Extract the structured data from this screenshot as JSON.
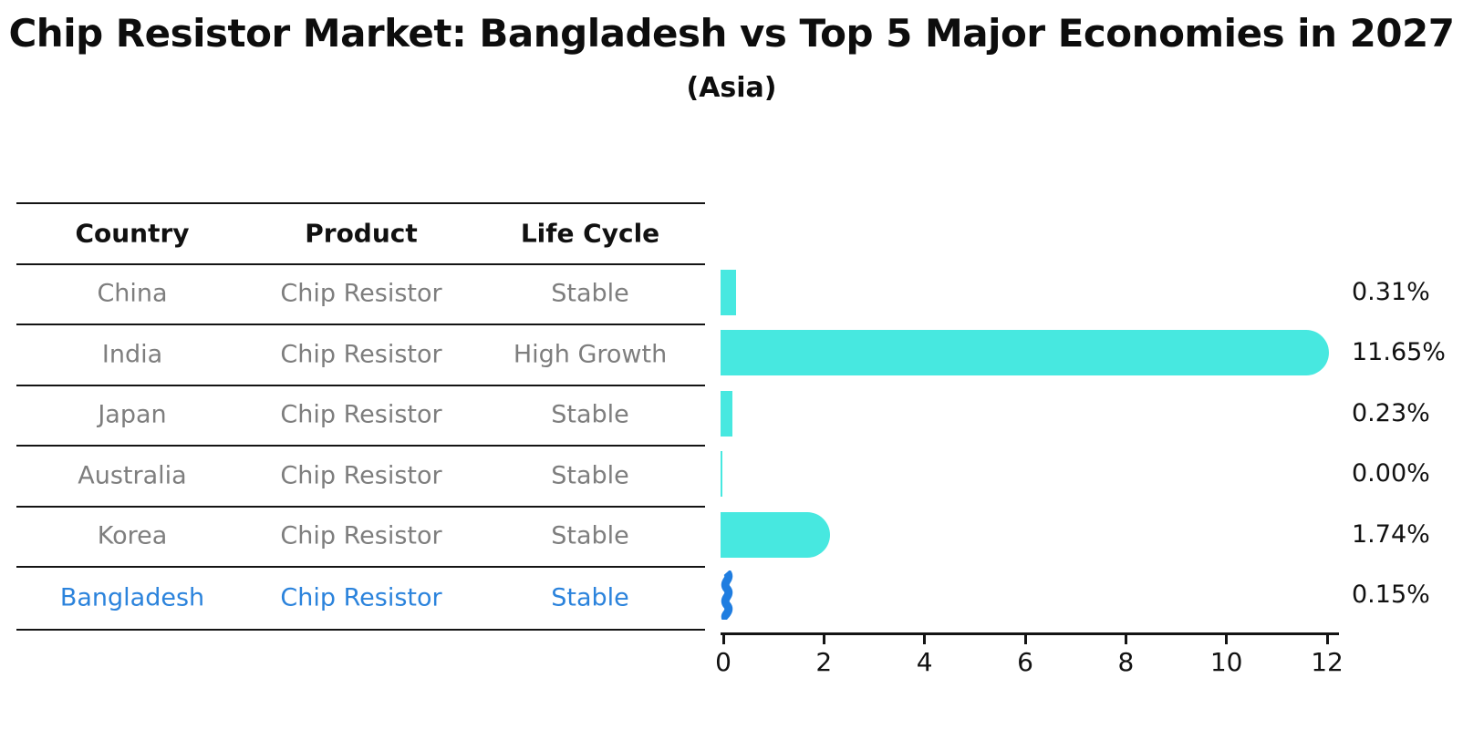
{
  "title": "Chip Resistor Market: Bangladesh vs Top 5 Major Economies in 2027",
  "subtitle": "(Asia)",
  "table": {
    "headers": [
      "Country",
      "Product",
      "Life Cycle"
    ],
    "rows": [
      {
        "country": "China",
        "product": "Chip Resistor",
        "life_cycle": "Stable",
        "highlighted": false
      },
      {
        "country": "India",
        "product": "Chip Resistor",
        "life_cycle": "High Growth",
        "highlighted": false
      },
      {
        "country": "Japan",
        "product": "Chip Resistor",
        "life_cycle": "Stable",
        "highlighted": false
      },
      {
        "country": "Australia",
        "product": "Chip Resistor",
        "life_cycle": "Stable",
        "highlighted": false
      },
      {
        "country": "Korea",
        "product": "Chip Resistor",
        "life_cycle": "Stable",
        "highlighted": false
      },
      {
        "country": "Bangladesh",
        "product": "Chip Resistor",
        "life_cycle": "Stable",
        "highlighted": true
      }
    ]
  },
  "chart_data": {
    "type": "bar",
    "orientation": "horizontal",
    "title": "Chip Resistor Market: Bangladesh vs Top 5 Major Economies in 2027",
    "subtitle": "(Asia)",
    "categories": [
      "China",
      "India",
      "Japan",
      "Australia",
      "Korea",
      "Bangladesh"
    ],
    "values": [
      0.31,
      11.65,
      0.23,
      0.0,
      1.74,
      0.15
    ],
    "value_labels": [
      "0.31%",
      "11.65%",
      "0.23%",
      "0.00%",
      "1.74%",
      "0.15%"
    ],
    "x_ticks": [
      "0",
      "2",
      "4",
      "6",
      "8",
      "10",
      "12"
    ],
    "xlim": [
      0,
      12
    ],
    "grid": false,
    "legend": false,
    "bar_color": "#47e8e0",
    "highlight_index": 5,
    "highlight_color": "#1f7de0"
  },
  "colors": {
    "text": "#111111",
    "muted_text": "#7e7e7e",
    "highlight_text": "#2b83dc",
    "line": "#141414"
  }
}
